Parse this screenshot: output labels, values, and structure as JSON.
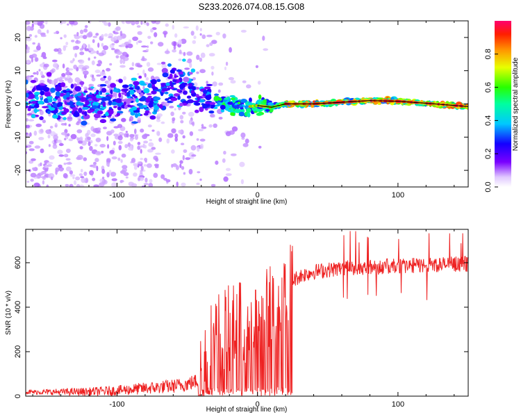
{
  "title": "S233.2026.074.08.15.G08",
  "colors": {
    "snr_line": "#ee2222",
    "ridge_line": "#000000"
  },
  "chart_data": [
    {
      "type": "heatmap",
      "name": "spectrogram",
      "xlabel": "Height of straight line (km)",
      "ylabel": "Frequency (Hz)",
      "xlim": [
        -165,
        150
      ],
      "ylim": [
        -25,
        25
      ],
      "xticks": [
        -100,
        0,
        100
      ],
      "yticks": [
        -20,
        -10,
        0,
        10,
        20
      ],
      "ridge": [
        [
          -165,
          2
        ],
        [
          -140,
          1
        ],
        [
          -120,
          0.5
        ],
        [
          -100,
          1
        ],
        [
          -85,
          1
        ],
        [
          -75,
          1.5
        ],
        [
          -65,
          5
        ],
        [
          -55,
          6
        ],
        [
          -45,
          5
        ],
        [
          -38,
          2
        ],
        [
          -30,
          1
        ],
        [
          -20,
          0
        ],
        [
          -10,
          -1
        ],
        [
          0,
          -0.5
        ],
        [
          10,
          -1
        ],
        [
          20,
          0
        ],
        [
          40,
          0
        ],
        [
          60,
          0.5
        ],
        [
          80,
          1
        ],
        [
          100,
          0.8
        ],
        [
          120,
          0.2
        ],
        [
          150,
          -0.8
        ]
      ],
      "colorbar": {
        "label": "Normalized spectral amplitude",
        "range": [
          0,
          1
        ],
        "ticks": [
          "0.0",
          "0.2",
          "0.4",
          "0.6",
          "0.8"
        ]
      }
    },
    {
      "type": "line",
      "name": "snr",
      "xlabel": "Height of straight line (km)",
      "ylabel": "SNR (10 * v/v)",
      "xlim": [
        -165,
        150
      ],
      "ylim": [
        0,
        750
      ],
      "xticks": [
        -100,
        0,
        100
      ],
      "yticks": [
        0,
        200,
        400,
        600
      ],
      "profile": [
        [
          -165,
          18
        ],
        [
          -120,
          20
        ],
        [
          -100,
          25
        ],
        [
          -90,
          30
        ],
        [
          -80,
          35
        ],
        [
          -70,
          40
        ],
        [
          -60,
          45
        ],
        [
          -50,
          55
        ],
        [
          -42,
          70
        ],
        [
          -38,
          150
        ],
        [
          -30,
          280
        ],
        [
          -20,
          300
        ],
        [
          -10,
          330
        ],
        [
          0,
          350
        ],
        [
          10,
          400
        ],
        [
          20,
          460
        ],
        [
          25,
          520
        ],
        [
          30,
          540
        ],
        [
          40,
          560
        ],
        [
          60,
          575
        ],
        [
          80,
          580
        ],
        [
          100,
          585
        ],
        [
          120,
          590
        ],
        [
          150,
          595
        ]
      ]
    }
  ]
}
